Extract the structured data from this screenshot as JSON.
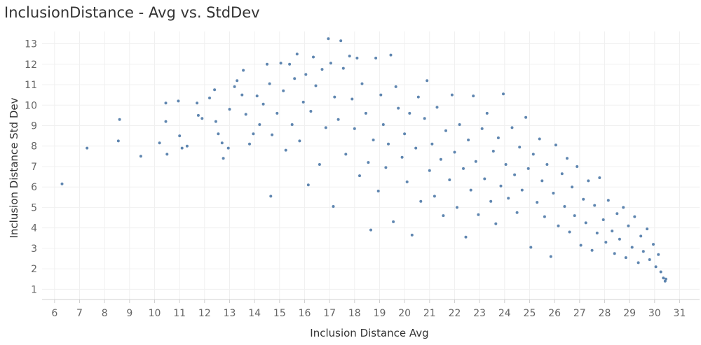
{
  "chart_data": {
    "type": "scatter",
    "title": "InclusionDistance - Avg vs. StdDev",
    "xlabel": "Inclusion Distance Avg",
    "ylabel": "Inclusion Distance Std Dev",
    "xlim": [
      5.5,
      31.8
    ],
    "ylim": [
      0.5,
      13.6
    ],
    "x_ticks": [
      "6",
      "7",
      "8",
      "9",
      "10",
      "11",
      "12",
      "13",
      "14",
      "15",
      "16",
      "17",
      "18",
      "19",
      "20",
      "21",
      "22",
      "23",
      "24",
      "25",
      "26",
      "27",
      "28",
      "29",
      "30",
      "31"
    ],
    "y_ticks": [
      "1",
      "2",
      "3",
      "4",
      "5",
      "6",
      "7",
      "8",
      "9",
      "10",
      "11",
      "12",
      "13"
    ],
    "grid": true,
    "legend": "none",
    "marker_color": "#4e79a7",
    "points": [
      [
        6.3,
        6.15
      ],
      [
        7.3,
        7.9
      ],
      [
        8.55,
        8.25
      ],
      [
        8.6,
        9.3
      ],
      [
        9.45,
        7.5
      ],
      [
        10.2,
        8.15
      ],
      [
        10.45,
        10.1
      ],
      [
        10.45,
        9.2
      ],
      [
        10.5,
        7.6
      ],
      [
        10.95,
        10.2
      ],
      [
        11.0,
        8.5
      ],
      [
        11.1,
        7.9
      ],
      [
        11.3,
        8.0
      ],
      [
        11.7,
        10.1
      ],
      [
        11.75,
        9.5
      ],
      [
        11.9,
        9.35
      ],
      [
        12.2,
        10.35
      ],
      [
        12.4,
        10.75
      ],
      [
        12.45,
        9.2
      ],
      [
        12.55,
        8.6
      ],
      [
        12.7,
        8.15
      ],
      [
        12.75,
        7.4
      ],
      [
        12.95,
        7.9
      ],
      [
        13.0,
        9.8
      ],
      [
        13.2,
        10.9
      ],
      [
        13.3,
        11.2
      ],
      [
        13.5,
        10.5
      ],
      [
        13.55,
        11.7
      ],
      [
        13.65,
        9.55
      ],
      [
        13.8,
        8.1
      ],
      [
        13.95,
        8.6
      ],
      [
        14.1,
        10.45
      ],
      [
        14.2,
        9.05
      ],
      [
        14.35,
        10.05
      ],
      [
        14.5,
        12.0
      ],
      [
        14.6,
        11.05
      ],
      [
        14.65,
        5.55
      ],
      [
        14.7,
        8.55
      ],
      [
        14.9,
        9.6
      ],
      [
        15.05,
        12.05
      ],
      [
        15.15,
        10.7
      ],
      [
        15.25,
        7.8
      ],
      [
        15.4,
        12.0
      ],
      [
        15.5,
        9.05
      ],
      [
        15.6,
        11.3
      ],
      [
        15.7,
        12.5
      ],
      [
        15.8,
        8.25
      ],
      [
        15.95,
        10.15
      ],
      [
        16.05,
        11.5
      ],
      [
        16.15,
        6.1
      ],
      [
        16.25,
        9.7
      ],
      [
        16.35,
        12.35
      ],
      [
        16.45,
        10.95
      ],
      [
        16.6,
        7.1
      ],
      [
        16.7,
        11.75
      ],
      [
        16.85,
        8.9
      ],
      [
        16.95,
        13.25
      ],
      [
        17.05,
        12.05
      ],
      [
        17.15,
        5.05
      ],
      [
        17.2,
        10.4
      ],
      [
        17.35,
        9.3
      ],
      [
        17.45,
        13.15
      ],
      [
        17.55,
        11.8
      ],
      [
        17.65,
        7.6
      ],
      [
        17.8,
        12.4
      ],
      [
        17.9,
        10.3
      ],
      [
        18.0,
        8.85
      ],
      [
        18.1,
        12.3
      ],
      [
        18.2,
        6.55
      ],
      [
        18.3,
        11.05
      ],
      [
        18.45,
        9.6
      ],
      [
        18.55,
        7.2
      ],
      [
        18.65,
        3.9
      ],
      [
        18.75,
        8.3
      ],
      [
        18.85,
        12.3
      ],
      [
        18.95,
        5.8
      ],
      [
        19.05,
        10.5
      ],
      [
        19.15,
        9.05
      ],
      [
        19.25,
        6.95
      ],
      [
        19.35,
        8.1
      ],
      [
        19.45,
        12.45
      ],
      [
        19.55,
        4.3
      ],
      [
        19.65,
        10.9
      ],
      [
        19.75,
        9.85
      ],
      [
        19.9,
        7.45
      ],
      [
        20.0,
        8.6
      ],
      [
        20.1,
        6.25
      ],
      [
        20.2,
        9.6
      ],
      [
        20.3,
        3.65
      ],
      [
        20.45,
        7.9
      ],
      [
        20.55,
        10.4
      ],
      [
        20.65,
        5.3
      ],
      [
        20.8,
        9.35
      ],
      [
        20.9,
        11.2
      ],
      [
        21.0,
        6.8
      ],
      [
        21.1,
        8.1
      ],
      [
        21.2,
        5.55
      ],
      [
        21.3,
        9.9
      ],
      [
        21.45,
        7.35
      ],
      [
        21.55,
        4.6
      ],
      [
        21.65,
        8.75
      ],
      [
        21.8,
        6.35
      ],
      [
        21.9,
        10.5
      ],
      [
        22.0,
        7.7
      ],
      [
        22.1,
        5.0
      ],
      [
        22.2,
        9.05
      ],
      [
        22.35,
        6.9
      ],
      [
        22.45,
        3.55
      ],
      [
        22.55,
        8.3
      ],
      [
        22.65,
        5.85
      ],
      [
        22.75,
        10.45
      ],
      [
        22.85,
        7.25
      ],
      [
        22.95,
        4.65
      ],
      [
        23.1,
        8.85
      ],
      [
        23.2,
        6.4
      ],
      [
        23.3,
        9.6
      ],
      [
        23.45,
        5.3
      ],
      [
        23.55,
        7.75
      ],
      [
        23.65,
        4.2
      ],
      [
        23.75,
        8.4
      ],
      [
        23.85,
        6.05
      ],
      [
        23.95,
        10.55
      ],
      [
        24.05,
        7.1
      ],
      [
        24.15,
        5.45
      ],
      [
        24.3,
        8.9
      ],
      [
        24.4,
        6.6
      ],
      [
        24.5,
        4.75
      ],
      [
        24.6,
        7.95
      ],
      [
        24.7,
        5.85
      ],
      [
        24.85,
        9.4
      ],
      [
        24.95,
        6.9
      ],
      [
        25.05,
        3.05
      ],
      [
        25.15,
        7.6
      ],
      [
        25.3,
        5.25
      ],
      [
        25.4,
        8.35
      ],
      [
        25.5,
        6.3
      ],
      [
        25.6,
        4.55
      ],
      [
        25.7,
        7.1
      ],
      [
        25.85,
        2.6
      ],
      [
        25.95,
        5.7
      ],
      [
        26.05,
        8.05
      ],
      [
        26.15,
        4.1
      ],
      [
        26.3,
        6.65
      ],
      [
        26.4,
        5.05
      ],
      [
        26.5,
        7.4
      ],
      [
        26.6,
        3.8
      ],
      [
        26.7,
        6.0
      ],
      [
        26.8,
        4.6
      ],
      [
        26.9,
        7.0
      ],
      [
        27.05,
        3.15
      ],
      [
        27.15,
        5.4
      ],
      [
        27.25,
        4.25
      ],
      [
        27.35,
        6.3
      ],
      [
        27.5,
        2.9
      ],
      [
        27.6,
        5.1
      ],
      [
        27.7,
        3.75
      ],
      [
        27.8,
        6.45
      ],
      [
        27.95,
        4.4
      ],
      [
        28.05,
        3.3
      ],
      [
        28.15,
        5.35
      ],
      [
        28.3,
        3.85
      ],
      [
        28.4,
        2.75
      ],
      [
        28.5,
        4.7
      ],
      [
        28.6,
        3.45
      ],
      [
        28.75,
        5.0
      ],
      [
        28.85,
        2.55
      ],
      [
        28.95,
        4.1
      ],
      [
        29.1,
        3.05
      ],
      [
        29.2,
        4.55
      ],
      [
        29.35,
        2.3
      ],
      [
        29.45,
        3.6
      ],
      [
        29.55,
        2.85
      ],
      [
        29.7,
        3.95
      ],
      [
        29.8,
        2.45
      ],
      [
        29.95,
        3.2
      ],
      [
        30.05,
        2.1
      ],
      [
        30.15,
        2.7
      ],
      [
        30.25,
        1.85
      ],
      [
        30.35,
        1.55
      ],
      [
        30.42,
        1.4
      ],
      [
        30.45,
        1.5
      ]
    ]
  }
}
